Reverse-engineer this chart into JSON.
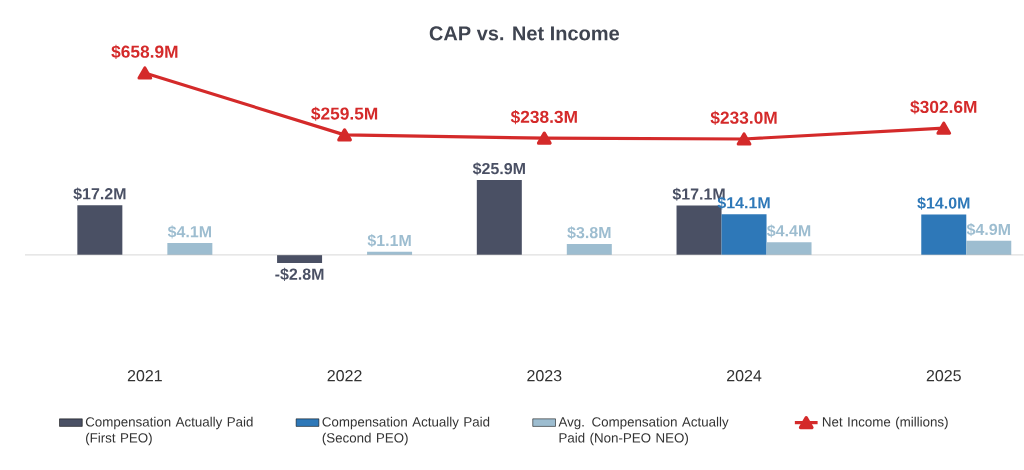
{
  "chart_data": [
    {
      "type": "bar",
      "categories": [
        "2021",
        "2022",
        "2023",
        "2024",
        "2025"
      ],
      "series": [
        {
          "name": "Compensation Actually Paid (First PEO)",
          "color": "#4a5064",
          "values": [
            17.2,
            -2.8,
            25.9,
            17.1,
            null
          ],
          "value_labels": [
            "$17.2M",
            "-$2.8M",
            "$25.9M",
            "$17.1M",
            null
          ]
        },
        {
          "name": "Compensation Actually Paid (Second PEO)",
          "color": "#2e78b8",
          "values": [
            null,
            null,
            null,
            14.1,
            14.0
          ],
          "value_labels": [
            null,
            null,
            null,
            "$14.1M",
            "$14.0M"
          ]
        },
        {
          "name": "Avg. Compensation Actually Paid (Non-PEO NEO)",
          "color": "#9dbdd0",
          "values": [
            4.1,
            1.1,
            3.8,
            4.4,
            4.9
          ],
          "value_labels": [
            "$4.1M",
            "$1.1M",
            "$3.8M",
            "$4.4M",
            "$4.9M"
          ]
        }
      ],
      "tick_labels": "x",
      "legend": "bottom"
    },
    {
      "type": "line",
      "title": "CAP vs. Net Income",
      "categories": [
        "2021",
        "2022",
        "2023",
        "2024",
        "2025"
      ],
      "series": [
        {
          "name": "Net Income (millions)",
          "color": "#d42a2a",
          "values": [
            658.9,
            259.5,
            238.3,
            233.0,
            302.6
          ],
          "value_labels": [
            "$658.9M",
            "$259.5M",
            "$238.3M",
            "$233.0M",
            "$302.6M"
          ]
        }
      ],
      "marker": "triangle",
      "tick_labels": false,
      "legend": "bottom"
    }
  ]
}
